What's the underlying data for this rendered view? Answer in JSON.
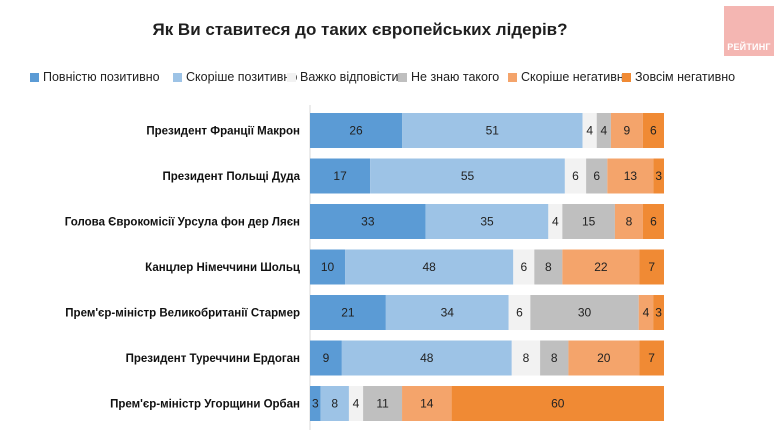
{
  "header": {
    "title": "Як Ви ставитеся до таких європейських лідерів?",
    "logo_text": "РЕЙТИНГ"
  },
  "colors": {
    "logo_bg": "#f4b6b2"
  },
  "chart_data": {
    "type": "bar",
    "orientation": "horizontal",
    "stacked": true,
    "title": "Як Ви ставитеся до таких європейських лідерів?",
    "legend_position": "top",
    "grid": false,
    "xlim": [
      0,
      100
    ],
    "categories": [
      "Президент Франції Макрон",
      "Президент Польщі Дуда",
      "Голова Єврокомісії Урсула фон дер Ляєн",
      "Канцлер Німеччини Шольц",
      "Прем'єр-міністр Великобританії Стармер",
      "Президент Туреччини Ердоган",
      "Прем'єр-міністр Угорщини Орбан"
    ],
    "series": [
      {
        "name": "Повністю позитивно",
        "color": "#5b9bd5",
        "values": [
          26,
          17,
          33,
          10,
          21,
          9,
          3
        ]
      },
      {
        "name": "Скоріше позитивно",
        "color": "#9dc3e6",
        "values": [
          51,
          55,
          35,
          48,
          34,
          48,
          8
        ]
      },
      {
        "name": "Важко відповісти",
        "color": "#f2f2f2",
        "values": [
          4,
          6,
          4,
          6,
          6,
          8,
          4
        ]
      },
      {
        "name": "Не знаю такого",
        "color": "#bfbfbf",
        "values": [
          4,
          6,
          15,
          8,
          30,
          8,
          11
        ]
      },
      {
        "name": "Скоріше негативно",
        "color": "#f4a46b",
        "values": [
          9,
          13,
          8,
          22,
          4,
          20,
          14
        ]
      },
      {
        "name": "Зовсім негативно",
        "color": "#f08a34",
        "values": [
          6,
          3,
          6,
          7,
          3,
          7,
          60
        ]
      }
    ]
  }
}
